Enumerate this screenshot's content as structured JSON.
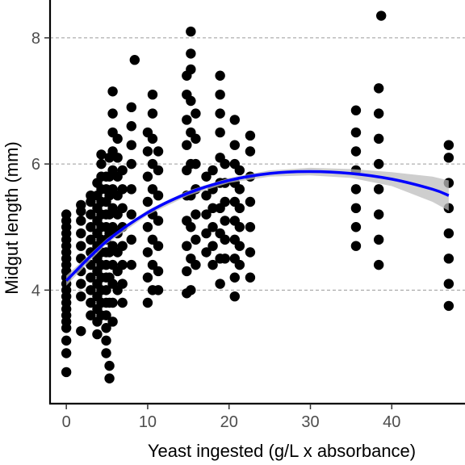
{
  "chart_data": {
    "type": "scatter",
    "xlabel": "Yeast ingested (g/L x absorbance)",
    "ylabel": "Midgut length (mm)",
    "xlim": [
      -2,
      49
    ],
    "ylim": [
      2.2,
      8.6
    ],
    "x_ticks": [
      0,
      10,
      20,
      30,
      40
    ],
    "y_ticks": [
      4,
      6,
      8
    ],
    "grid": "horizontal dashed major lines",
    "legend": "none",
    "point_color": "#000000",
    "trend_color": "#0000ff",
    "ci_color": "#bdbdbd",
    "groups": [
      {
        "x": 0.0,
        "values": [
          2.7,
          3.0,
          3.2,
          3.4,
          3.5,
          3.6,
          3.7,
          3.8,
          3.9,
          4.0,
          4.1,
          4.2,
          4.3,
          4.4,
          4.5,
          4.6,
          4.7,
          4.8,
          4.9,
          5.0,
          5.1,
          5.2
        ]
      },
      {
        "x": 1.8,
        "values": [
          3.35,
          3.9,
          4.1,
          4.3,
          4.5,
          4.7,
          4.9,
          5.1,
          5.25,
          5.35
        ]
      },
      {
        "x": 3.0,
        "values": [
          3.6,
          3.8,
          4.0,
          4.2,
          4.4,
          4.6,
          4.8,
          5.0,
          5.2,
          5.4,
          5.5
        ]
      },
      {
        "x": 3.8,
        "values": [
          3.3,
          3.5,
          3.7,
          3.9,
          4.1,
          4.3,
          4.5,
          4.7,
          4.9,
          5.1,
          5.3,
          5.5,
          5.7
        ]
      },
      {
        "x": 4.3,
        "values": [
          3.6,
          3.8,
          4.0,
          4.2,
          4.4,
          4.6,
          4.8,
          5.0,
          5.2,
          5.4,
          5.6,
          5.8,
          6.0,
          6.15
        ]
      },
      {
        "x": 4.9,
        "values": [
          3.0,
          3.2,
          3.4,
          3.6,
          3.8,
          4.0,
          4.2,
          4.4,
          4.6,
          4.8,
          5.0,
          5.2,
          5.4,
          5.6,
          5.8
        ]
      },
      {
        "x": 5.3,
        "values": [
          2.6,
          2.8,
          3.8,
          4.2,
          4.6,
          4.9,
          5.2,
          5.5,
          5.8,
          6.1
        ]
      },
      {
        "x": 5.7,
        "values": [
          3.5,
          3.8,
          4.1,
          4.4,
          4.7,
          5.0,
          5.3,
          5.6,
          5.9,
          6.2,
          6.5,
          6.8,
          7.15
        ]
      },
      {
        "x": 6.3,
        "values": [
          4.0,
          4.3,
          4.6,
          4.9,
          5.2,
          5.5,
          5.8,
          6.1,
          6.4
        ]
      },
      {
        "x": 6.9,
        "values": [
          3.8,
          4.1,
          4.4,
          4.7,
          5.0,
          5.3,
          5.6,
          5.9
        ]
      },
      {
        "x": 8.0,
        "values": [
          4.4,
          4.8,
          5.2,
          5.6,
          6.0,
          6.3,
          6.6,
          6.9
        ]
      },
      {
        "x": 8.4,
        "values": [
          7.65
        ]
      },
      {
        "x": 10.0,
        "values": [
          3.8,
          4.2,
          4.6,
          5.0,
          5.4,
          5.8,
          6.2,
          6.5
        ]
      },
      {
        "x": 10.6,
        "values": [
          4.0,
          4.4,
          4.8,
          5.2,
          5.6,
          6.0,
          6.4,
          6.8,
          7.1
        ]
      },
      {
        "x": 11.3,
        "values": [
          4.0,
          4.3,
          4.7,
          5.1,
          5.5,
          5.9,
          6.2
        ]
      },
      {
        "x": 14.8,
        "values": [
          3.95,
          4.3,
          4.7,
          5.1,
          5.5,
          5.9,
          6.3,
          6.7,
          7.1,
          7.4
        ]
      },
      {
        "x": 15.3,
        "values": [
          4.0,
          4.5,
          5.0,
          5.5,
          6.0,
          6.5,
          7.0,
          7.5,
          7.75,
          8.1
        ]
      },
      {
        "x": 15.9,
        "values": [
          4.4,
          4.8,
          5.2,
          5.6,
          6.0,
          6.4,
          6.8
        ]
      },
      {
        "x": 17.2,
        "values": [
          4.6,
          4.9,
          5.2,
          5.5,
          5.8
        ]
      },
      {
        "x": 18.0,
        "values": [
          4.4,
          4.7,
          5.0,
          5.3,
          5.6,
          5.9
        ]
      },
      {
        "x": 18.9,
        "values": [
          4.1,
          4.5,
          4.9,
          5.3,
          5.7,
          6.1,
          6.5,
          6.8,
          7.1,
          7.4
        ]
      },
      {
        "x": 19.5,
        "values": [
          4.5,
          4.8,
          5.1,
          5.4,
          5.7,
          6.0
        ]
      },
      {
        "x": 20.7,
        "values": [
          3.9,
          4.2,
          4.5,
          4.8,
          5.1,
          5.4,
          5.7,
          6.0,
          6.3,
          6.7
        ]
      },
      {
        "x": 21.3,
        "values": [
          4.4,
          4.7,
          5.0,
          5.3,
          5.6,
          5.9
        ]
      },
      {
        "x": 22.6,
        "values": [
          4.2,
          4.6,
          5.0,
          5.4,
          5.8,
          6.2,
          6.45
        ]
      },
      {
        "x": 35.6,
        "values": [
          4.7,
          5.0,
          5.3,
          5.6,
          5.9,
          6.2,
          6.5,
          6.85
        ]
      },
      {
        "x": 38.4,
        "values": [
          4.4,
          4.8,
          5.2,
          5.6,
          6.0,
          6.4,
          6.8,
          7.2
        ]
      },
      {
        "x": 38.7,
        "values": [
          8.35
        ]
      },
      {
        "x": 47.0,
        "values": [
          3.75,
          4.1,
          4.5,
          4.9,
          5.3,
          5.7,
          6.1,
          6.3
        ]
      }
    ],
    "trend": {
      "x": [
        0,
        5,
        10,
        15,
        20,
        25,
        30,
        35,
        40,
        45,
        47
      ],
      "y": [
        4.15,
        4.78,
        5.23,
        5.54,
        5.74,
        5.85,
        5.88,
        5.85,
        5.76,
        5.6,
        5.5
      ],
      "ci_halfwidth": [
        0.08,
        0.04,
        0.04,
        0.04,
        0.04,
        0.05,
        0.06,
        0.07,
        0.11,
        0.2,
        0.24
      ]
    }
  }
}
